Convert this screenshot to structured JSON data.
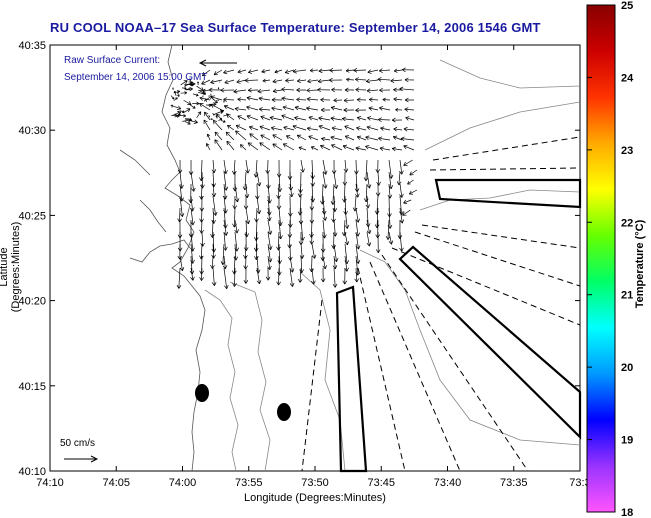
{
  "title": "RU COOL  NOAA–17  Sea Surface Temperature:  September 14, 2006 1546 GMT",
  "xlabel": "Longitude (Degrees:Minutes)",
  "ylabel": "Latitude (Degrees:Minutes)",
  "annotation": {
    "line1": "Raw Surface Current:",
    "line2": "September 14, 2006 15:00 GMT"
  },
  "scale_label": "50 cm/s",
  "x_ticks": [
    "74:10",
    "74:05",
    "74:00",
    "73:55",
    "73:50",
    "73:45",
    "73:40",
    "73:35",
    "73:3"
  ],
  "y_ticks": [
    "40:35",
    "40:30",
    "40:25",
    "40:20",
    "40:15",
    "40:10"
  ],
  "colorbar": {
    "title": "Temperature (°C)",
    "ticks": [
      "25",
      "24",
      "23",
      "22",
      "21",
      "20",
      "19",
      "18"
    ],
    "range": [
      18,
      25
    ],
    "colors": [
      "#ff55ff",
      "#9933ff",
      "#0000ff",
      "#0099ff",
      "#00ffff",
      "#00ff66",
      "#66ff00",
      "#ffff00",
      "#ffaa00",
      "#ff3300",
      "#cc0000",
      "#880000"
    ]
  }
}
